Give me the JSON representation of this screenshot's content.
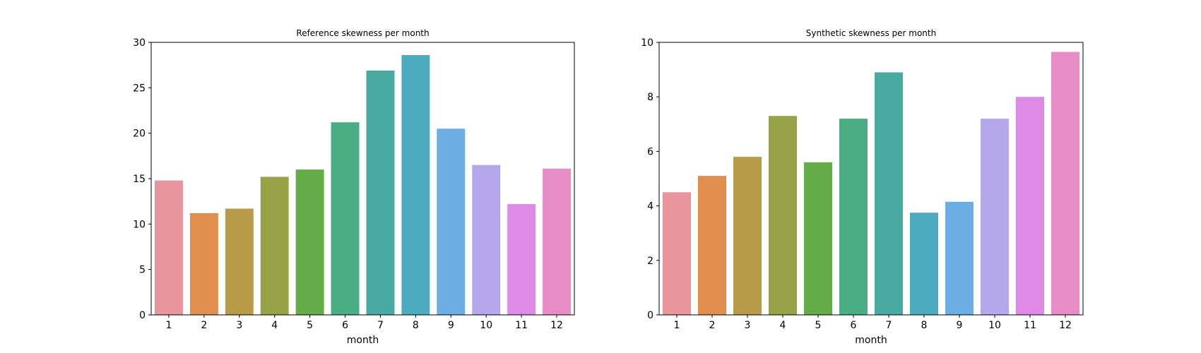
{
  "chart_data": [
    {
      "type": "bar",
      "title": "Reference skewness per month",
      "xlabel": "month",
      "ylabel": "",
      "categories": [
        "1",
        "2",
        "3",
        "4",
        "5",
        "6",
        "7",
        "8",
        "9",
        "10",
        "11",
        "12"
      ],
      "values": [
        14.8,
        11.2,
        11.7,
        15.2,
        16.0,
        21.2,
        26.9,
        28.6,
        20.5,
        16.5,
        12.2,
        16.1
      ],
      "ylim": [
        0,
        30
      ],
      "yticks": [
        "0",
        "5",
        "10",
        "15",
        "20",
        "25",
        "30"
      ],
      "grid": false,
      "colors": [
        "#e8959e",
        "#e08f4f",
        "#b89b48",
        "#97a346",
        "#62ad47",
        "#4aae85",
        "#48aaa0",
        "#4cabbe",
        "#6cade4",
        "#b6a7ec",
        "#de8be8",
        "#e88cc5"
      ]
    },
    {
      "type": "bar",
      "title": "Synthetic skewness per month",
      "xlabel": "month",
      "ylabel": "",
      "categories": [
        "1",
        "2",
        "3",
        "4",
        "5",
        "6",
        "7",
        "8",
        "9",
        "10",
        "11",
        "12"
      ],
      "values": [
        4.5,
        5.1,
        5.8,
        7.3,
        5.6,
        7.2,
        8.9,
        3.75,
        4.15,
        7.2,
        8.0,
        9.65
      ],
      "ylim": [
        0,
        10
      ],
      "yticks": [
        "0",
        "2",
        "4",
        "6",
        "8",
        "10"
      ],
      "grid": false,
      "colors": [
        "#e8959e",
        "#e08f4f",
        "#b89b48",
        "#97a346",
        "#62ad47",
        "#4aae85",
        "#48aaa0",
        "#4cabbe",
        "#6cade4",
        "#b6a7ec",
        "#de8be8",
        "#e88cc5"
      ]
    }
  ]
}
